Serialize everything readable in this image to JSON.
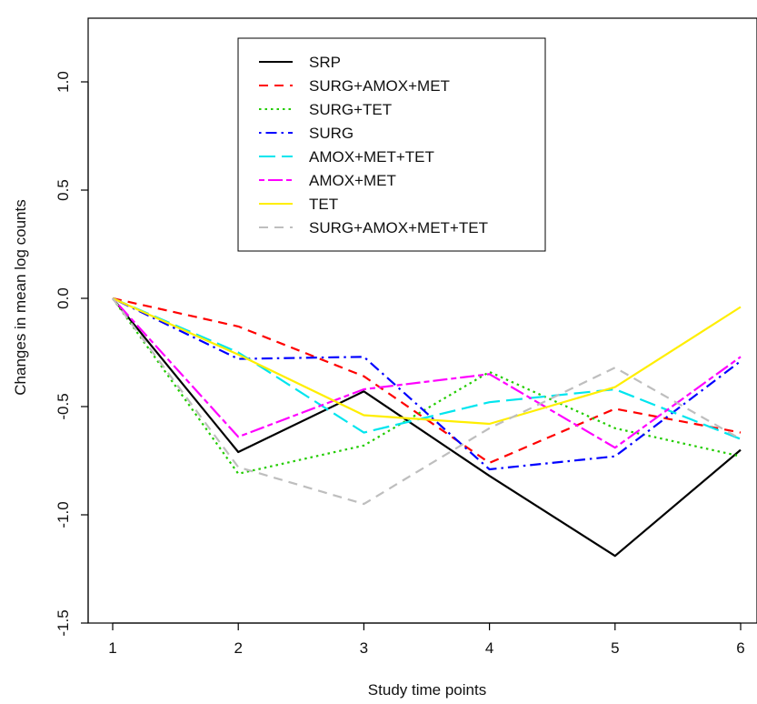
{
  "chart_data": {
    "type": "line",
    "title": "",
    "xlabel": "Study time points",
    "ylabel": "Changes in mean log counts",
    "x": [
      1,
      2,
      3,
      4,
      5,
      6
    ],
    "x_ticks": [
      "1",
      "2",
      "3",
      "4",
      "5",
      "6"
    ],
    "y_ticks": [
      "-1.5",
      "-1.0",
      "-0.5",
      "0.0",
      "0.5",
      "1.0"
    ],
    "y_tick_values": [
      -1.5,
      -1.0,
      -0.5,
      0.0,
      0.5,
      1.0
    ],
    "xlim": [
      1,
      6
    ],
    "ylim": [
      -1.5,
      1.0
    ],
    "grid": false,
    "legend_position": "top-center",
    "series": [
      {
        "name": "SRP",
        "color": "#000000",
        "dash": "solid",
        "values": [
          0.0,
          -0.71,
          -0.43,
          -0.82,
          -1.19,
          -0.7
        ]
      },
      {
        "name": "SURG+AMOX+MET",
        "color": "#ff0000",
        "dash": "dashed",
        "values": [
          0.0,
          -0.13,
          -0.36,
          -0.76,
          -0.51,
          -0.62
        ]
      },
      {
        "name": "SURG+TET",
        "color": "#22cc00",
        "dash": "dotted",
        "values": [
          0.0,
          -0.81,
          -0.68,
          -0.34,
          -0.6,
          -0.73
        ]
      },
      {
        "name": "SURG",
        "color": "#0000ff",
        "dash": "dotdash",
        "values": [
          0.0,
          -0.28,
          -0.27,
          -0.79,
          -0.73,
          -0.29
        ]
      },
      {
        "name": "AMOX+MET+TET",
        "color": "#00e5ee",
        "dash": "longdash",
        "values": [
          0.0,
          -0.25,
          -0.62,
          -0.48,
          -0.42,
          -0.65
        ]
      },
      {
        "name": "AMOX+MET",
        "color": "#ff00ff",
        "dash": "twodash",
        "values": [
          0.0,
          -0.64,
          -0.42,
          -0.35,
          -0.69,
          -0.27
        ]
      },
      {
        "name": "TET",
        "color": "#ffee00",
        "dash": "solid",
        "values": [
          0.0,
          -0.26,
          -0.54,
          -0.58,
          -0.41,
          -0.04
        ]
      },
      {
        "name": "SURG+AMOX+MET+TET",
        "color": "#bebebe",
        "dash": "dashed",
        "values": [
          0.0,
          -0.78,
          -0.95,
          -0.6,
          -0.32,
          -0.65
        ]
      }
    ]
  }
}
